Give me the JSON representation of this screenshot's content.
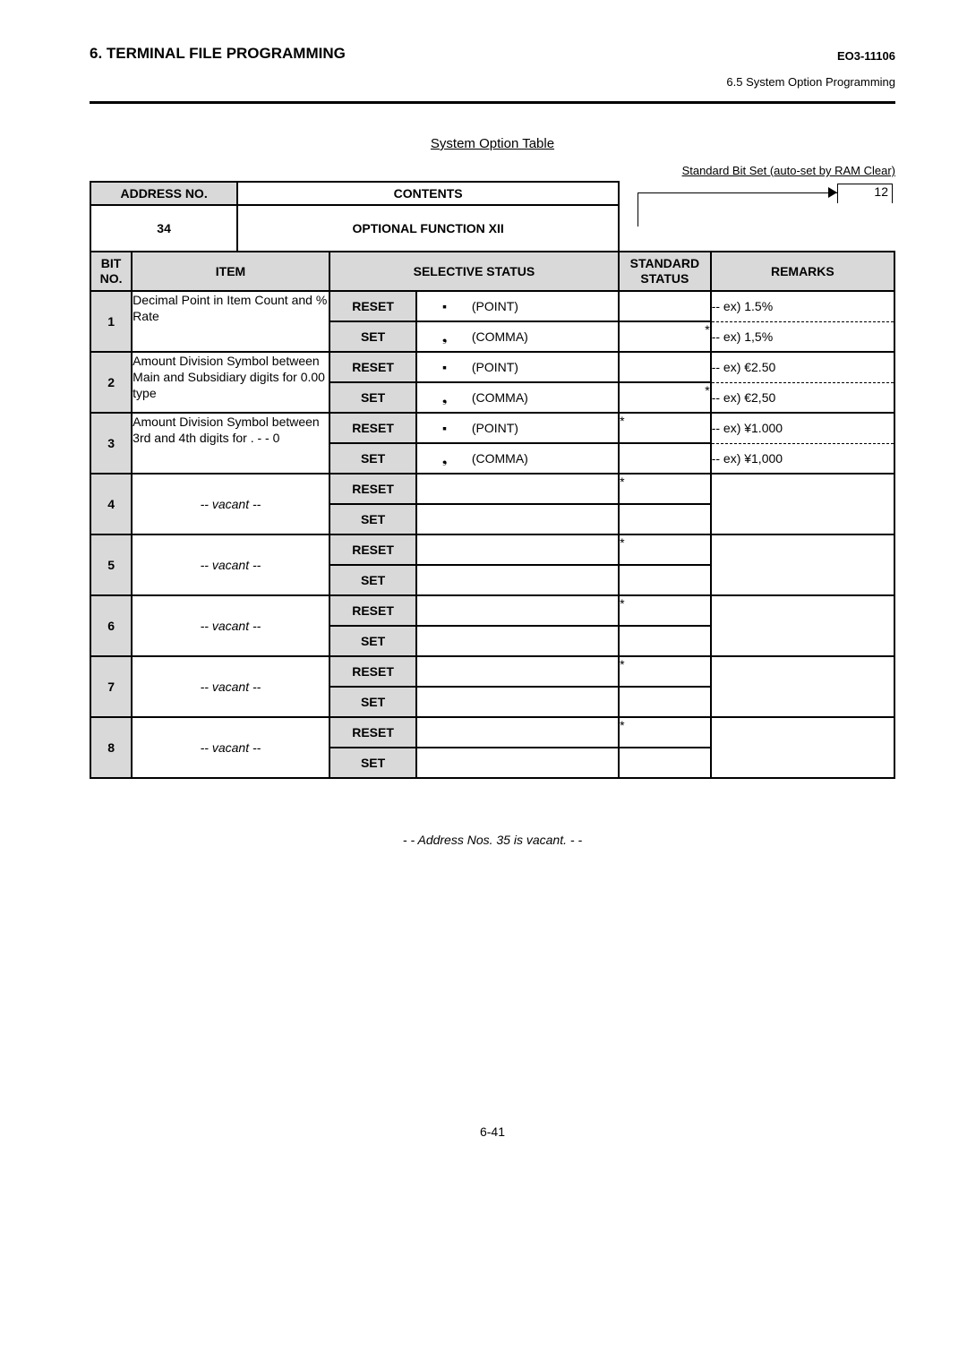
{
  "header": {
    "section_title": "6. TERMINAL FILE PROGRAMMING",
    "doc_code": "EO3-11106",
    "subsection": "6.5 System Option Programming"
  },
  "table_title": "System Option Table",
  "legend_text": "Standard Bit Set (auto-set by RAM Clear)",
  "legend_value": "12",
  "address": {
    "header_addr": "ADDRESS NO.",
    "header_contents": "CONTENTS",
    "addr_value": "34",
    "function_name": "OPTIONAL FUNCTION XII"
  },
  "col_headers": {
    "bitno": "BIT NO.",
    "item": "ITEM",
    "selective": "SELECTIVE STATUS",
    "standard": "STANDARD STATUS",
    "remarks": "REMARKS"
  },
  "labels": {
    "reset": "RESET",
    "set": "SET"
  },
  "rows": [
    {
      "bit": "1",
      "item": "Decimal Point in Item Count and % Rate",
      "vacant": false,
      "reset_sym": "▪",
      "reset_label": "(POINT)",
      "reset_std": "",
      "reset_remark": "-- ex)  1.5%",
      "set_sym": "❟",
      "set_label": "(COMMA)",
      "set_std": "*",
      "set_remark": "-- ex)  1,5%",
      "std_placement_reset": "",
      "std_placement_set": "right"
    },
    {
      "bit": "2",
      "item": "Amount Division Symbol between Main and Subsidiary digits for 0.00 type",
      "vacant": false,
      "reset_sym": "▪",
      "reset_label": "(POINT)",
      "reset_std": "",
      "reset_remark": "-- ex)  €2.50",
      "set_sym": "❟",
      "set_label": "(COMMA)",
      "set_std": "*",
      "set_remark": "-- ex)  €2,50",
      "std_placement_reset": "",
      "std_placement_set": "right"
    },
    {
      "bit": "3",
      "item": "Amount Division Symbol between 3rd and 4th digits for . - - 0",
      "vacant": false,
      "reset_sym": "▪",
      "reset_label": "(POINT)",
      "reset_std": "*",
      "reset_remark": "-- ex)  ¥1.000",
      "set_sym": "❟",
      "set_label": "(COMMA)",
      "set_std": "",
      "set_remark": "-- ex)  ¥1,000",
      "std_placement_reset": "left",
      "std_placement_set": ""
    },
    {
      "bit": "4",
      "item": "-- vacant --",
      "vacant": true,
      "reset_sym": "",
      "reset_label": "",
      "reset_std": "*",
      "reset_remark": "",
      "set_sym": "",
      "set_label": "",
      "set_std": "",
      "set_remark": "",
      "std_placement_reset": "left",
      "std_placement_set": ""
    },
    {
      "bit": "5",
      "item": "-- vacant --",
      "vacant": true,
      "reset_sym": "",
      "reset_label": "",
      "reset_std": "*",
      "reset_remark": "",
      "set_sym": "",
      "set_label": "",
      "set_std": "",
      "set_remark": "",
      "std_placement_reset": "left",
      "std_placement_set": ""
    },
    {
      "bit": "6",
      "item": "-- vacant --",
      "vacant": true,
      "reset_sym": "",
      "reset_label": "",
      "reset_std": "*",
      "reset_remark": "",
      "set_sym": "",
      "set_label": "",
      "set_std": "",
      "set_remark": "",
      "std_placement_reset": "left",
      "std_placement_set": ""
    },
    {
      "bit": "7",
      "item": "-- vacant --",
      "vacant": true,
      "reset_sym": "",
      "reset_label": "",
      "reset_std": "*",
      "reset_remark": "",
      "set_sym": "",
      "set_label": "",
      "set_std": "",
      "set_remark": "",
      "std_placement_reset": "left",
      "std_placement_set": ""
    },
    {
      "bit": "8",
      "item": "-- vacant --",
      "vacant": true,
      "reset_sym": "",
      "reset_label": "",
      "reset_std": "*",
      "reset_remark": "",
      "set_sym": "",
      "set_label": "",
      "set_std": "",
      "set_remark": "",
      "std_placement_reset": "left",
      "std_placement_set": ""
    }
  ],
  "vacant_note": "- - Address Nos. 35 is vacant. - -",
  "page_number": "6-41"
}
